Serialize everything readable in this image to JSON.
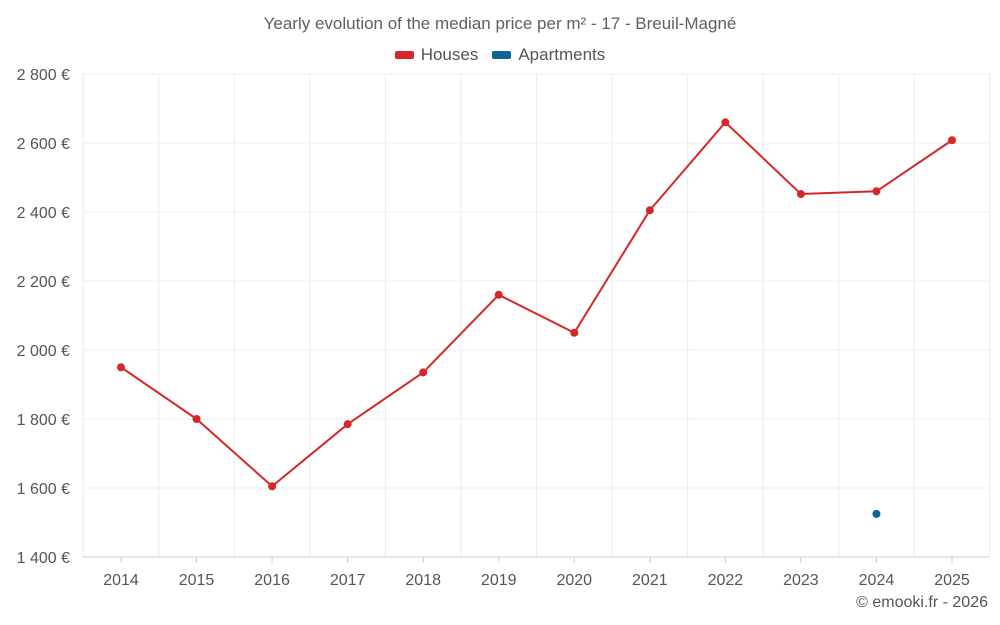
{
  "chart_data": {
    "type": "line",
    "title": "Yearly evolution of the median price per m² - 17 - Breuil-Magné",
    "categories": [
      "2014",
      "2015",
      "2016",
      "2017",
      "2018",
      "2019",
      "2020",
      "2021",
      "2022",
      "2023",
      "2024",
      "2025"
    ],
    "series": [
      {
        "name": "Houses",
        "color": "#d62728",
        "values": [
          1950,
          1800,
          1605,
          1785,
          1935,
          2160,
          2050,
          2405,
          2660,
          2452,
          2460,
          2608
        ]
      },
      {
        "name": "Apartments",
        "color": "#0b6396",
        "values": [
          null,
          null,
          null,
          null,
          null,
          null,
          null,
          null,
          null,
          null,
          1525,
          null
        ]
      }
    ],
    "ylim": [
      1400,
      2800
    ],
    "yticks": [
      1400,
      1600,
      1800,
      2000,
      2200,
      2400,
      2600,
      2800
    ],
    "ytick_labels": [
      "1 400 €",
      "1 600 €",
      "1 800 €",
      "2 000 €",
      "2 200 €",
      "2 400 €",
      "2 600 €",
      "2 800 €"
    ],
    "xlabel": "",
    "ylabel": "",
    "grid": true,
    "legend_position": "top-center"
  },
  "credit": "© emooki.fr - 2026"
}
